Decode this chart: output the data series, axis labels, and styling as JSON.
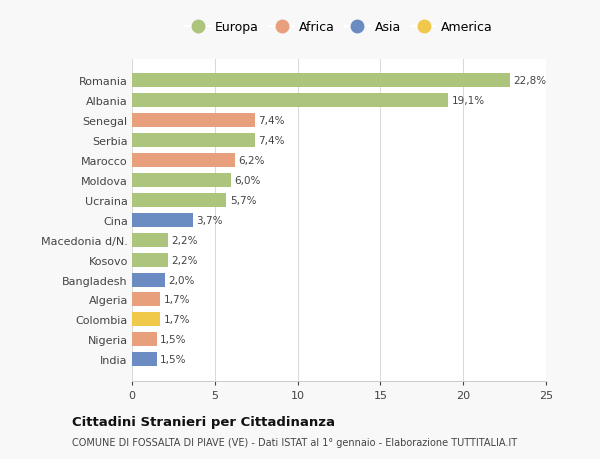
{
  "countries": [
    "Romania",
    "Albania",
    "Senegal",
    "Serbia",
    "Marocco",
    "Moldova",
    "Ucraina",
    "Cina",
    "Macedonia d/N.",
    "Kosovo",
    "Bangladesh",
    "Algeria",
    "Colombia",
    "Nigeria",
    "India"
  ],
  "values": [
    22.8,
    19.1,
    7.4,
    7.4,
    6.2,
    6.0,
    5.7,
    3.7,
    2.2,
    2.2,
    2.0,
    1.7,
    1.7,
    1.5,
    1.5
  ],
  "labels": [
    "22,8%",
    "19,1%",
    "7,4%",
    "7,4%",
    "6,2%",
    "6,0%",
    "5,7%",
    "3,7%",
    "2,2%",
    "2,2%",
    "2,0%",
    "1,7%",
    "1,7%",
    "1,5%",
    "1,5%"
  ],
  "continents": [
    "Europa",
    "Europa",
    "Africa",
    "Europa",
    "Africa",
    "Europa",
    "Europa",
    "Asia",
    "Europa",
    "Europa",
    "Asia",
    "Africa",
    "America",
    "Africa",
    "Asia"
  ],
  "colors": {
    "Europa": "#adc47d",
    "Africa": "#e8a07c",
    "Asia": "#6b8cc2",
    "America": "#f0c84a"
  },
  "legend_order": [
    "Europa",
    "Africa",
    "Asia",
    "America"
  ],
  "title": "Cittadini Stranieri per Cittadinanza",
  "subtitle": "COMUNE DI FOSSALTA DI PIAVE (VE) - Dati ISTAT al 1° gennaio - Elaborazione TUTTITALIA.IT",
  "xlim": [
    0,
    25
  ],
  "xticks": [
    0,
    5,
    10,
    15,
    20,
    25
  ],
  "background_color": "#f8f8f8",
  "plot_bg_color": "#ffffff"
}
